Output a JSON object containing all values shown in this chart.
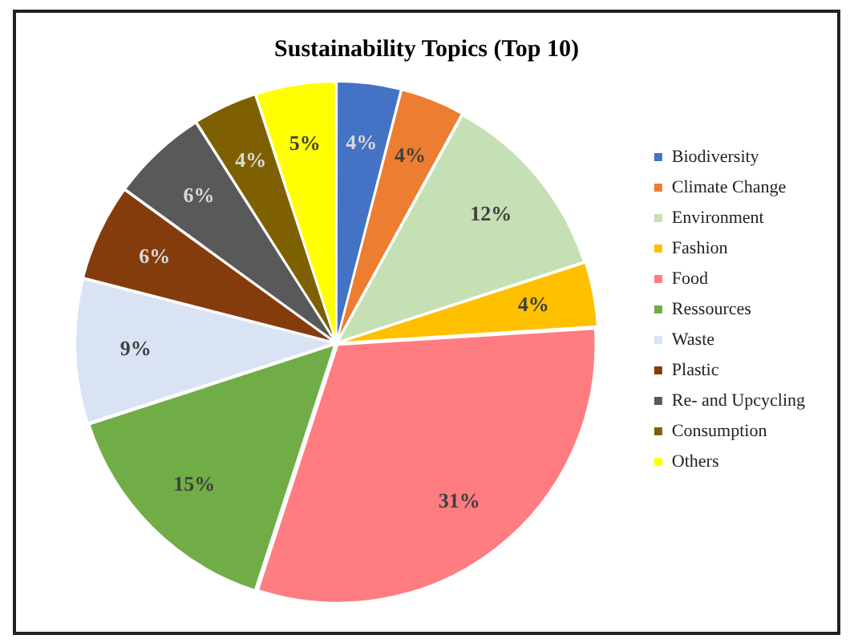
{
  "chart_data": {
    "type": "pie",
    "title": "Sustainability Topics (Top 10)",
    "categories": [
      "Biodiversity",
      "Climate Change",
      "Environment",
      "Fashion",
      "Food",
      "Ressources",
      "Waste",
      "Plastic",
      "Re- and Upcycling",
      "Consumption",
      "Others"
    ],
    "values": [
      4,
      4,
      12,
      4,
      31,
      15,
      9,
      6,
      6,
      4,
      5
    ],
    "colors": [
      "#4472c4",
      "#ed7d31",
      "#c5e0b4",
      "#ffc000",
      "#ff7c80",
      "#70ad47",
      "#dae3f3",
      "#843c0c",
      "#595959",
      "#7f6000",
      "#ffff00"
    ],
    "value_labels": [
      "4%",
      "4%",
      "12%",
      "4%",
      "31%",
      "15%",
      "9%",
      "6%",
      "6%",
      "4%",
      "5%"
    ],
    "legend": "right"
  }
}
